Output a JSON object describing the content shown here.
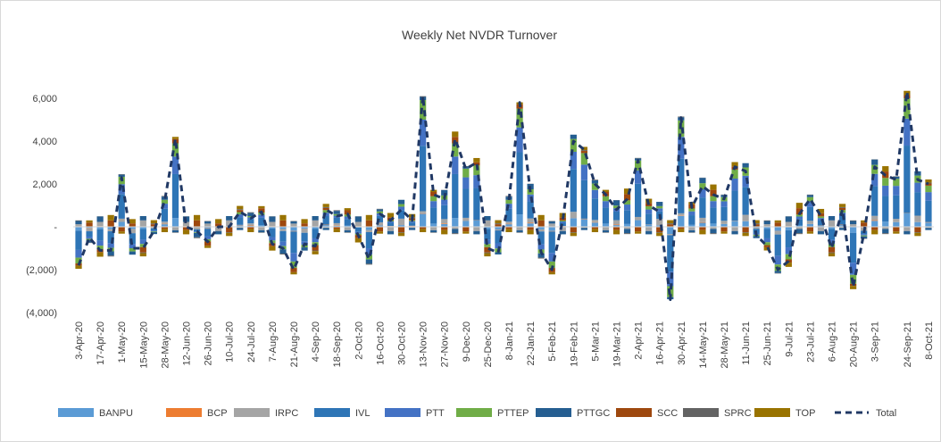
{
  "chart_data": {
    "type": "bar",
    "stacked": true,
    "title": "Weekly Net NVDR Turnover",
    "categories": [
      "3-Apr-20",
      null,
      "17-Apr-20",
      null,
      "1-May-20",
      null,
      "15-May-20",
      null,
      "28-May-20",
      null,
      "12-Jun-20",
      null,
      "26-Jun-20",
      null,
      "10-Jul-20",
      null,
      "24-Jul-20",
      null,
      "7-Aug-20",
      null,
      "21-Aug-20",
      null,
      "4-Sep-20",
      null,
      "18-Sep-20",
      null,
      "2-Oct-20",
      null,
      "16-Oct-20",
      null,
      "30-Oct-20",
      null,
      "13-Nov-20",
      null,
      "27-Nov-20",
      null,
      "9-Dec-20",
      null,
      "25-Dec-20",
      null,
      "8-Jan-21",
      null,
      "22-Jan-21",
      null,
      "5-Feb-21",
      null,
      "19-Feb-21",
      null,
      "5-Mar-21",
      null,
      "19-Mar-21",
      null,
      "2-Apr-21",
      null,
      "16-Apr-21",
      null,
      "30-Apr-21",
      null,
      "14-May-21",
      null,
      "28-May-21",
      null,
      "11-Jun-21",
      null,
      "25-Jun-21",
      null,
      "9-Jul-21",
      null,
      "23-Jul-21",
      null,
      "6-Aug-21",
      null,
      "20-Aug-21",
      null,
      "3-Sep-21",
      null,
      null,
      "24-Sep-21",
      null,
      "8-Oct-21"
    ],
    "series": [
      {
        "name": "BANPU",
        "color": "#5b9bd5",
        "values": [
          -180,
          -50,
          -110,
          -110,
          230,
          -100,
          -100,
          -20,
          120,
          410,
          0,
          -20,
          -70,
          0,
          0,
          70,
          40,
          70,
          -80,
          -100,
          -200,
          -80,
          -90,
          80,
          50,
          60,
          -40,
          -150,
          60,
          30,
          80,
          30,
          610,
          150,
          130,
          410,
          270,
          300,
          -100,
          -120,
          120,
          580,
          160,
          -120,
          -200,
          30,
          400,
          360,
          200,
          150,
          80,
          130,
          310,
          100,
          70,
          -340,
          510,
          90,
          190,
          150,
          130,
          280,
          260,
          -40,
          -90,
          -200,
          -160,
          60,
          130,
          50,
          -100,
          80,
          -280,
          -30,
          280,
          240,
          220,
          630,
          220,
          200
        ]
      },
      {
        "name": "BCP",
        "color": "#ed7d31",
        "values": [
          20,
          -10,
          30,
          0,
          -20,
          10,
          0,
          20,
          20,
          -10,
          30,
          0,
          -20,
          10,
          0,
          20,
          20,
          -10,
          30,
          0,
          -20,
          10,
          0,
          20,
          20,
          -10,
          30,
          0,
          -20,
          10,
          0,
          20,
          20,
          -10,
          30,
          0,
          -20,
          10,
          0,
          20,
          20,
          -10,
          30,
          0,
          -20,
          10,
          0,
          20,
          20,
          -10,
          30,
          0,
          -20,
          10,
          0,
          20,
          20,
          -10,
          30,
          0,
          -20,
          10,
          0,
          20,
          20,
          -10,
          30,
          0,
          -20,
          10,
          0,
          20,
          20,
          -10,
          30,
          0,
          -20,
          10,
          0,
          20
        ]
      },
      {
        "name": "IRPC",
        "color": "#a5a5a5",
        "values": [
          100,
          -150,
          200,
          -100,
          150,
          -200,
          300,
          -50,
          100,
          -150,
          200,
          -100,
          150,
          -200,
          300,
          -50,
          100,
          -150,
          200,
          -100,
          150,
          -200,
          300,
          -50,
          100,
          -150,
          200,
          -100,
          150,
          -200,
          300,
          -50,
          100,
          -150,
          200,
          -100,
          150,
          -200,
          300,
          -50,
          100,
          -150,
          200,
          -100,
          150,
          -200,
          300,
          -50,
          100,
          -150,
          200,
          -100,
          150,
          -200,
          300,
          -50,
          100,
          -150,
          200,
          -100,
          150,
          -200,
          300,
          -50,
          100,
          -150,
          200,
          -100,
          150,
          -200,
          300,
          -50,
          100,
          -150,
          200,
          -100,
          150,
          -200,
          300,
          -50
        ]
      },
      {
        "name": "IVL",
        "color": "#2e75b6",
        "values": [
          -900,
          -250,
          -550,
          -550,
          1150,
          -500,
          -500,
          -100,
          600,
          2050,
          0,
          -100,
          -350,
          0,
          0,
          350,
          200,
          350,
          -400,
          -500,
          -1000,
          -400,
          -450,
          400,
          250,
          300,
          -200,
          -750,
          300,
          150,
          400,
          150,
          3050,
          750,
          650,
          2050,
          1350,
          1500,
          -500,
          -600,
          600,
          2900,
          800,
          -600,
          -1000,
          150,
          2000,
          1800,
          1000,
          750,
          400,
          650,
          1550,
          500,
          350,
          -1700,
          2550,
          450,
          950,
          750,
          650,
          1400,
          1300,
          -200,
          -450,
          -1000,
          -800,
          300,
          650,
          250,
          -500,
          400,
          -1400,
          -150,
          1400,
          1200,
          1100,
          3150,
          1100,
          1000
        ]
      },
      {
        "name": "PTT",
        "color": "#4472c4",
        "values": [
          -360,
          -100,
          -220,
          -220,
          460,
          -200,
          -200,
          -40,
          240,
          820,
          0,
          -40,
          -140,
          0,
          0,
          140,
          80,
          140,
          -160,
          -200,
          -400,
          -160,
          -180,
          160,
          100,
          120,
          -80,
          -300,
          120,
          60,
          160,
          60,
          1220,
          300,
          260,
          820,
          540,
          600,
          -200,
          -240,
          240,
          1160,
          320,
          -240,
          -400,
          60,
          800,
          720,
          400,
          300,
          160,
          260,
          620,
          200,
          140,
          -680,
          1020,
          180,
          380,
          300,
          260,
          560,
          520,
          -80,
          -180,
          -400,
          -320,
          120,
          260,
          100,
          -200,
          160,
          -560,
          -60,
          560,
          480,
          440,
          1260,
          440,
          400
        ]
      },
      {
        "name": "PTTEP",
        "color": "#70ad47",
        "values": [
          -270,
          -75,
          -165,
          -165,
          345,
          -150,
          -150,
          -30,
          180,
          615,
          0,
          -30,
          -105,
          0,
          0,
          105,
          60,
          105,
          -120,
          -150,
          -300,
          -120,
          -135,
          120,
          75,
          90,
          -60,
          -225,
          90,
          45,
          120,
          45,
          915,
          225,
          195,
          615,
          405,
          450,
          -150,
          -180,
          180,
          870,
          240,
          -180,
          -300,
          45,
          600,
          540,
          300,
          225,
          120,
          195,
          465,
          150,
          105,
          -510,
          765,
          135,
          285,
          225,
          195,
          420,
          390,
          -60,
          -135,
          -300,
          -240,
          90,
          195,
          75,
          -150,
          120,
          -420,
          -45,
          420,
          360,
          330,
          945,
          330,
          300
        ]
      },
      {
        "name": "PTTGC",
        "color": "#255e91",
        "values": [
          150,
          -100,
          250,
          -200,
          100,
          -150,
          200,
          -100,
          150,
          -100,
          250,
          -200,
          100,
          -150,
          200,
          -100,
          150,
          -100,
          250,
          -200,
          100,
          -150,
          200,
          -100,
          150,
          -100,
          250,
          -200,
          100,
          -150,
          200,
          -100,
          150,
          -100,
          250,
          -200,
          100,
          -150,
          200,
          -100,
          150,
          -100,
          250,
          -200,
          100,
          -150,
          200,
          -100,
          150,
          -100,
          250,
          -200,
          100,
          -150,
          200,
          -100,
          150,
          -100,
          250,
          -200,
          100,
          -150,
          200,
          -100,
          150,
          -100,
          250,
          -200,
          100,
          -150,
          200,
          -100,
          150,
          -100,
          250,
          -200,
          100,
          -150,
          200,
          -100
        ]
      },
      {
        "name": "SCC",
        "color": "#9e480e",
        "values": [
          -100,
          200,
          -150,
          300,
          -200,
          150,
          -250,
          100,
          -100,
          200,
          -150,
          300,
          -200,
          150,
          -250,
          100,
          -100,
          200,
          -150,
          300,
          -200,
          150,
          -250,
          100,
          -100,
          200,
          -150,
          300,
          -200,
          150,
          -250,
          100,
          -100,
          200,
          -150,
          300,
          -200,
          150,
          -250,
          100,
          -100,
          200,
          -150,
          300,
          -200,
          150,
          -250,
          100,
          -100,
          200,
          -150,
          300,
          -200,
          150,
          -250,
          100,
          -100,
          200,
          -150,
          300,
          -200,
          150,
          -250,
          100,
          -100,
          200,
          -150,
          300,
          -200,
          150,
          -250,
          100,
          -100,
          200,
          -150,
          300,
          -200,
          150,
          -250,
          100
        ]
      },
      {
        "name": "SPRC",
        "color": "#636363",
        "values": [
          30,
          -20,
          10,
          -40,
          20,
          0,
          -30,
          40,
          30,
          -20,
          10,
          -40,
          20,
          0,
          -30,
          40,
          30,
          -20,
          10,
          -40,
          20,
          0,
          -30,
          40,
          30,
          -20,
          10,
          -40,
          20,
          0,
          -30,
          40,
          30,
          -20,
          10,
          -40,
          20,
          0,
          -30,
          40,
          30,
          -20,
          10,
          -40,
          20,
          0,
          -30,
          40,
          30,
          -20,
          10,
          -40,
          20,
          0,
          -30,
          40,
          30,
          -20,
          10,
          -40,
          20,
          0,
          -30,
          40,
          30,
          -20,
          10,
          -40,
          20,
          0,
          -30,
          40,
          30,
          -20,
          10,
          -40,
          20,
          0,
          -30,
          40
        ]
      },
      {
        "name": "TOP",
        "color": "#997300",
        "values": [
          -150,
          100,
          -200,
          250,
          -100,
          200,
          -150,
          150,
          -150,
          100,
          -200,
          250,
          -100,
          200,
          -150,
          150,
          -150,
          100,
          -200,
          250,
          -100,
          200,
          -150,
          150,
          -150,
          100,
          -200,
          250,
          -100,
          200,
          -150,
          150,
          -150,
          100,
          -200,
          250,
          -100,
          200,
          -150,
          150,
          -150,
          100,
          -200,
          250,
          -100,
          200,
          -150,
          150,
          -150,
          100,
          -200,
          250,
          -100,
          200,
          -150,
          150,
          -150,
          100,
          -200,
          250,
          -100,
          200,
          -150,
          150,
          -150,
          100,
          -200,
          250,
          -100,
          200,
          -150,
          150,
          -150,
          100,
          -200,
          250,
          -100,
          200,
          -150,
          150
        ]
      },
      {
        "name": "Total",
        "type": "line",
        "color": "#203864",
        "values": [
          -1800,
          -500,
          -1100,
          -1100,
          2300,
          -1000,
          -1000,
          -200,
          1200,
          4100,
          0,
          -200,
          -700,
          0,
          0,
          700,
          400,
          700,
          -800,
          -1000,
          -2000,
          -800,
          -900,
          800,
          500,
          600,
          -400,
          -1500,
          600,
          300,
          800,
          300,
          6100,
          1500,
          1300,
          4100,
          2700,
          3000,
          -1000,
          -1200,
          1200,
          5800,
          1600,
          -1200,
          -2000,
          300,
          4000,
          3600,
          2000,
          1500,
          800,
          1300,
          3100,
          1000,
          700,
          -3400,
          5100,
          900,
          1900,
          1500,
          1300,
          2800,
          2600,
          -400,
          -900,
          -2000,
          -1600,
          600,
          1300,
          500,
          -1000,
          800,
          -2800,
          -300,
          2800,
          2400,
          2200,
          6300,
          2200,
          2000
        ]
      }
    ],
    "ylim": [
      -4000,
      7000
    ],
    "yticks": [
      {
        "value": -4000,
        "label": "(4,000)"
      },
      {
        "value": -2000,
        "label": "(2,000)"
      },
      {
        "value": 0,
        "label": "-"
      },
      {
        "value": 2000,
        "label": "2,000"
      },
      {
        "value": 4000,
        "label": "4,000"
      },
      {
        "value": 6000,
        "label": "6,000"
      }
    ],
    "grid": false,
    "legend": "bottom"
  }
}
